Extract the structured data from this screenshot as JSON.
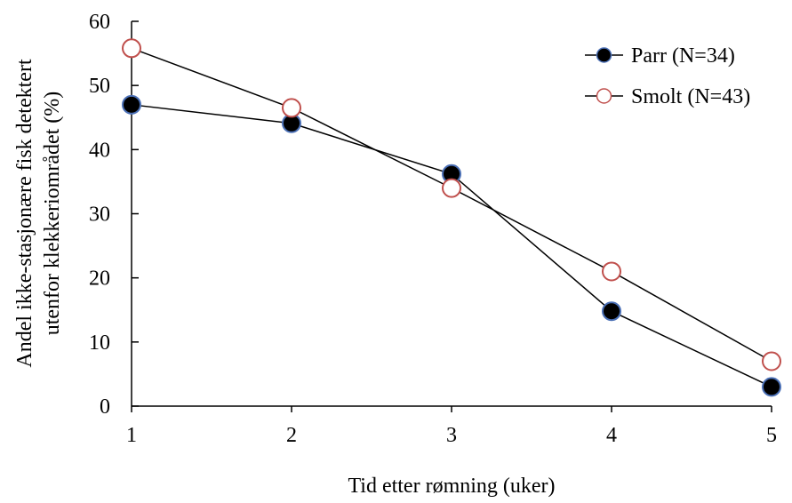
{
  "chart_data": {
    "type": "line",
    "title": "",
    "xlabel": "Tid etter rømning (uker)",
    "ylabel_lines": [
      "Andel ikke-stasjonære fisk detektert",
      "utenfor klekkeriområdet (%)"
    ],
    "x": [
      1,
      2,
      3,
      4,
      5
    ],
    "xlim": [
      1,
      5
    ],
    "ylim": [
      0,
      60
    ],
    "yticks": [
      0,
      10,
      20,
      30,
      40,
      50,
      60
    ],
    "xticks": [
      1,
      2,
      3,
      4,
      5
    ],
    "grid": false,
    "legend_position": "top-right",
    "series": [
      {
        "name": "Parr (N=34)",
        "values": [
          47.0,
          44.1,
          36.2,
          14.8,
          3.0
        ],
        "marker": "filled-circle",
        "marker_fill": "#000000",
        "marker_edge": "#4a6fb5"
      },
      {
        "name": "Smolt (N=43)",
        "values": [
          55.8,
          46.5,
          34.0,
          21.0,
          7.0
        ],
        "marker": "open-circle",
        "marker_fill": "#ffffff",
        "marker_edge": "#c0504d"
      }
    ]
  }
}
